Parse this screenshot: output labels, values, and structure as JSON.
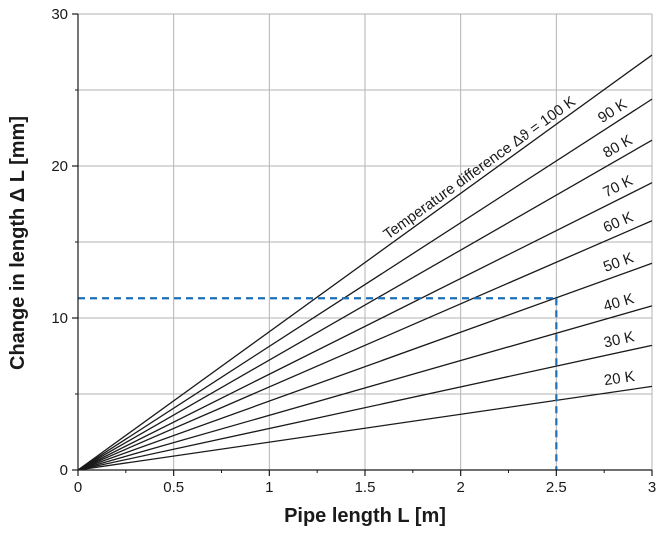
{
  "chart_data": {
    "type": "line",
    "xlabel": "Pipe length L [m]",
    "ylabel": "Change in length Δ L [mm]",
    "xlim": [
      0,
      3
    ],
    "ylim": [
      0,
      30
    ],
    "x_ticks": [
      "0",
      "0.5",
      "1",
      "1.5",
      "2",
      "2.5",
      "3"
    ],
    "y_ticks": [
      "0",
      "10",
      "20",
      "30"
    ],
    "grid": true,
    "x": [
      0,
      3
    ],
    "series": [
      {
        "name": "20 K",
        "values": [
          0,
          5.5
        ]
      },
      {
        "name": "30 K",
        "values": [
          0,
          8.2
        ]
      },
      {
        "name": "40 K",
        "values": [
          0,
          10.8
        ]
      },
      {
        "name": "50 K",
        "values": [
          0,
          13.6
        ]
      },
      {
        "name": "60 K",
        "values": [
          0,
          16.4
        ]
      },
      {
        "name": "70 K",
        "values": [
          0,
          18.9
        ]
      },
      {
        "name": "80 K",
        "values": [
          0,
          21.7
        ]
      },
      {
        "name": "90 K",
        "values": [
          0,
          24.4
        ]
      },
      {
        "name": "Temperature difference Δϑ = 100 K",
        "values": [
          0,
          27.3
        ]
      }
    ],
    "annotation": {
      "x": 2.5,
      "y": 11.3,
      "style": "dashed",
      "color": "#1f6fb5"
    },
    "line_color": "#1a1a1a",
    "grid_color": "#b3b3b3"
  }
}
